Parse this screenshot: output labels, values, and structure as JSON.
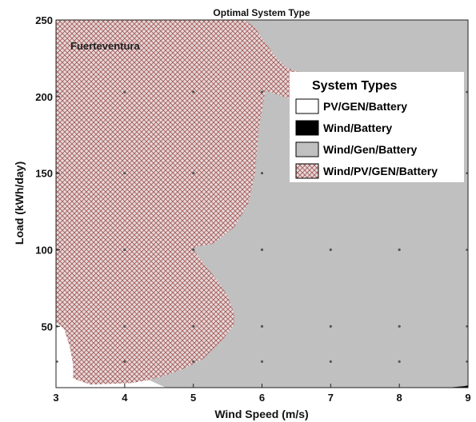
{
  "chart_data": {
    "type": "heatmap",
    "title": "Optimal System Type",
    "xlabel": "Wind Speed (m/s)",
    "ylabel": "Load (kWh/day)",
    "xlim": [
      3,
      9
    ],
    "ylim": [
      10,
      250
    ],
    "xticks": [
      3,
      4,
      5,
      6,
      7,
      8,
      9
    ],
    "yticks": [
      50,
      100,
      150,
      200,
      250
    ],
    "annotation": "Fuerteventura",
    "legend": {
      "title": "System Types",
      "placement": "right",
      "entries": [
        {
          "label": "PV/GEN/Battery",
          "color": "#ffffff",
          "pattern": "solid"
        },
        {
          "label": "Wind/Battery",
          "color": "#000000",
          "pattern": "solid"
        },
        {
          "label": "Wind/Gen/Battery",
          "color": "#c0c0c0",
          "pattern": "solid"
        },
        {
          "label": "Wind/PV/GEN/Battery",
          "color": "#c4b4b4",
          "pattern": "crosshatch",
          "hatch_color": "#a55a5a"
        }
      ]
    },
    "sample_points": {
      "x": [
        4,
        5,
        6,
        7,
        8
      ],
      "y": [
        27,
        50,
        100,
        150,
        203
      ]
    },
    "regions": [
      {
        "series": "Wind/PV/GEN/Battery",
        "boundary": [
          [
            3,
            250
          ],
          [
            5.75,
            250
          ],
          [
            5.9,
            245
          ],
          [
            6.0,
            238
          ],
          [
            6.1,
            232
          ],
          [
            6.2,
            226
          ],
          [
            6.35,
            219
          ],
          [
            6.6,
            215
          ],
          [
            6.85,
            213
          ],
          [
            7.1,
            211
          ],
          [
            7.2,
            205
          ],
          [
            7.15,
            198
          ],
          [
            6.9,
            196
          ],
          [
            6.5,
            197
          ],
          [
            6.05,
            204
          ],
          [
            5.95,
            178
          ],
          [
            5.9,
            150
          ],
          [
            5.8,
            130
          ],
          [
            5.6,
            115
          ],
          [
            5.3,
            104
          ],
          [
            5.05,
            102
          ],
          [
            5.0,
            100
          ],
          [
            5.15,
            91
          ],
          [
            5.35,
            80
          ],
          [
            5.5,
            70
          ],
          [
            5.6,
            58
          ],
          [
            5.6,
            51
          ],
          [
            5.4,
            40
          ],
          [
            5.15,
            29
          ],
          [
            4.9,
            23
          ],
          [
            4.6,
            18
          ],
          [
            4.35,
            15
          ],
          [
            4.1,
            13
          ],
          [
            3.5,
            12
          ],
          [
            3.25,
            16
          ],
          [
            3.25,
            25
          ],
          [
            3.2,
            37
          ],
          [
            3.12,
            48
          ],
          [
            3,
            53
          ]
        ]
      },
      {
        "series": "Wind/Battery",
        "boundary": [
          [
            8.7,
            10
          ],
          [
            8.95,
            11
          ],
          [
            9,
            11.5
          ],
          [
            9,
            10
          ]
        ]
      }
    ]
  }
}
